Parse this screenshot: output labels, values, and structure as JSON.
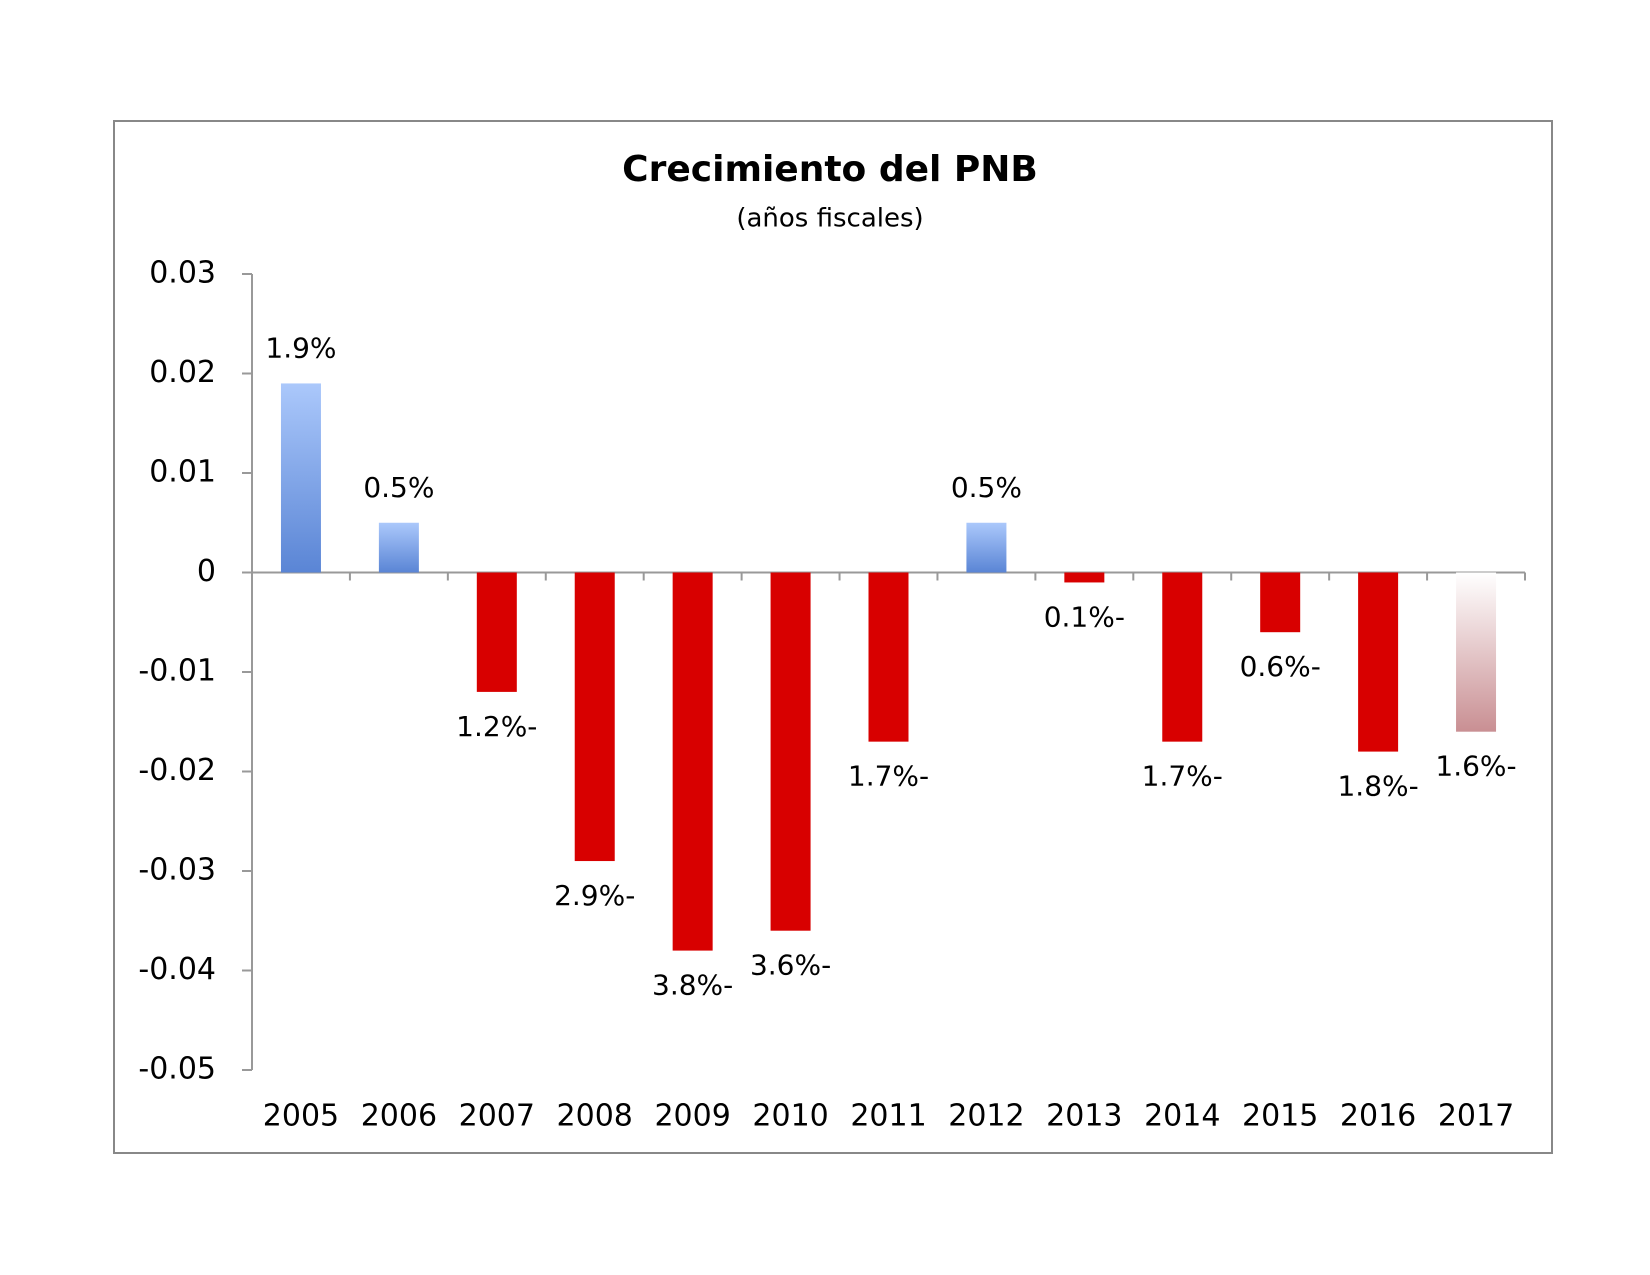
{
  "chart_data": {
    "type": "bar",
    "title": "Crecimiento del PNB",
    "subtitle": "(años fiscales)",
    "categories": [
      "2005",
      "2006",
      "2007",
      "2008",
      "2009",
      "2010",
      "2011",
      "2012",
      "2013",
      "2014",
      "2015",
      "2016",
      "2017"
    ],
    "values": [
      0.019,
      0.005,
      -0.012,
      -0.029,
      -0.038,
      -0.036,
      -0.017,
      0.005,
      -0.001,
      -0.017,
      -0.006,
      -0.018,
      -0.016
    ],
    "value_labels": [
      "1.9%",
      "0.5%",
      "1.2%-",
      "2.9%-",
      "3.8%-",
      "3.6%-",
      "1.7%-",
      "0.5%",
      "0.1%-",
      "1.7%-",
      "0.6%-",
      "1.8%-",
      "1.6%-"
    ],
    "colors": [
      [
        "#abc8fb",
        "#5a85d5"
      ],
      [
        "#abc8fb",
        "#5a85d5"
      ],
      [
        "#d80000",
        "#d80000"
      ],
      [
        "#d80000",
        "#d80000"
      ],
      [
        "#d80000",
        "#d80000"
      ],
      [
        "#d80000",
        "#d80000"
      ],
      [
        "#d80000",
        "#d80000"
      ],
      [
        "#abc8fb",
        "#5a85d5"
      ],
      [
        "#d80000",
        "#d80000"
      ],
      [
        "#d80000",
        "#d80000"
      ],
      [
        "#d80000",
        "#d80000"
      ],
      [
        "#d80000",
        "#d80000"
      ],
      [
        "#ffffff",
        "#c98f93"
      ]
    ],
    "ylim": [
      -0.05,
      0.03
    ],
    "yticks": [
      0.03,
      0.02,
      0.01,
      0,
      -0.01,
      -0.02,
      -0.03,
      -0.04,
      -0.05
    ],
    "grid": false
  }
}
